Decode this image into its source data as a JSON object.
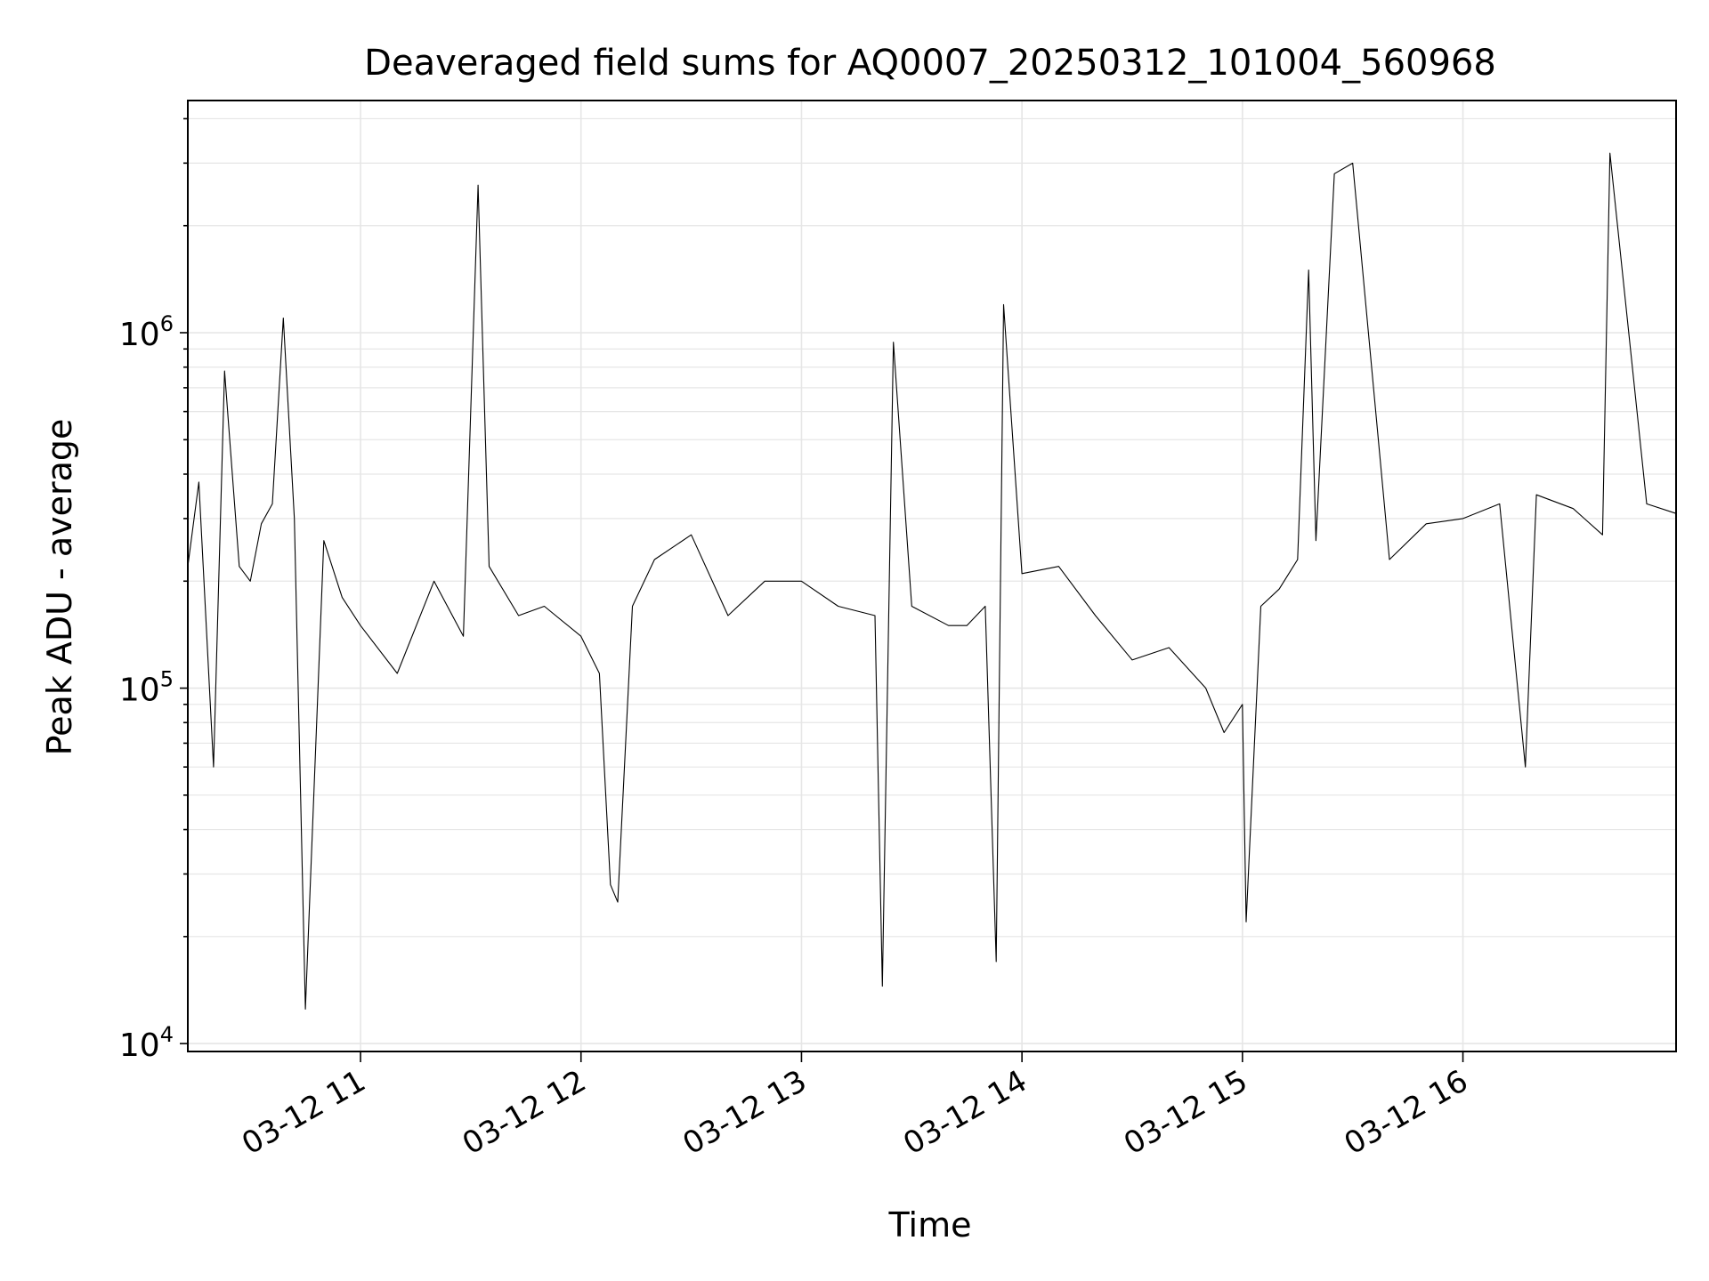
{
  "chart_data": {
    "type": "line",
    "title": "Deaveraged field sums for AQ0007_20250312_101004_560968",
    "xlabel": "Time",
    "ylabel": "Peak ADU - average",
    "xscale": "time",
    "yscale": "log",
    "grid": true,
    "legend": "none",
    "line_color": "#000000",
    "xlim": [
      "2025-03-12 10:13",
      "2025-03-12 16:58"
    ],
    "ylim": [
      9500,
      4500000
    ],
    "x_ticks": [
      "03-12 11",
      "03-12 12",
      "03-12 13",
      "03-12 14",
      "03-12 15",
      "03-12 16"
    ],
    "y_tick_values": [
      10000,
      100000,
      1000000
    ],
    "y_tick_labels": [
      {
        "base": "10",
        "exp": "4"
      },
      {
        "base": "10",
        "exp": "5"
      },
      {
        "base": "10",
        "exp": "6"
      }
    ],
    "series": [
      {
        "x": [
          "2025-03-12 10:13",
          "2025-03-12 10:16",
          "2025-03-12 10:20",
          "2025-03-12 10:23",
          "2025-03-12 10:27",
          "2025-03-12 10:30",
          "2025-03-12 10:33",
          "2025-03-12 10:36",
          "2025-03-12 10:39",
          "2025-03-12 10:42",
          "2025-03-12 10:45",
          "2025-03-12 10:50",
          "2025-03-12 10:55",
          "2025-03-12 11:00",
          "2025-03-12 11:10",
          "2025-03-12 11:20",
          "2025-03-12 11:28",
          "2025-03-12 11:32",
          "2025-03-12 11:35",
          "2025-03-12 11:43",
          "2025-03-12 11:50",
          "2025-03-12 12:00",
          "2025-03-12 12:05",
          "2025-03-12 12:08",
          "2025-03-12 12:10",
          "2025-03-12 12:14",
          "2025-03-12 12:20",
          "2025-03-12 12:30",
          "2025-03-12 12:40",
          "2025-03-12 12:50",
          "2025-03-12 13:00",
          "2025-03-12 13:10",
          "2025-03-12 13:20",
          "2025-03-12 13:22",
          "2025-03-12 13:25",
          "2025-03-12 13:30",
          "2025-03-12 13:40",
          "2025-03-12 13:45",
          "2025-03-12 13:50",
          "2025-03-12 13:53",
          "2025-03-12 13:55",
          "2025-03-12 14:00",
          "2025-03-12 14:10",
          "2025-03-12 14:20",
          "2025-03-12 14:30",
          "2025-03-12 14:40",
          "2025-03-12 14:50",
          "2025-03-12 14:55",
          "2025-03-12 15:00",
          "2025-03-12 15:01",
          "2025-03-12 15:05",
          "2025-03-12 15:10",
          "2025-03-12 15:15",
          "2025-03-12 15:18",
          "2025-03-12 15:20",
          "2025-03-12 15:25",
          "2025-03-12 15:30",
          "2025-03-12 15:40",
          "2025-03-12 15:50",
          "2025-03-12 16:00",
          "2025-03-12 16:10",
          "2025-03-12 16:17",
          "2025-03-12 16:20",
          "2025-03-12 16:30",
          "2025-03-12 16:38",
          "2025-03-12 16:40",
          "2025-03-12 16:50",
          "2025-03-12 16:58"
        ],
        "y": [
          220000,
          380000,
          60000,
          780000,
          220000,
          200000,
          290000,
          330000,
          1100000,
          300000,
          12500,
          260000,
          180000,
          150000,
          110000,
          200000,
          140000,
          2600000,
          220000,
          160000,
          170000,
          140000,
          110000,
          28000,
          25000,
          170000,
          230000,
          270000,
          160000,
          200000,
          200000,
          170000,
          160000,
          14500,
          940000,
          170000,
          150000,
          150000,
          170000,
          17000,
          1200000,
          210000,
          220000,
          160000,
          120000,
          130000,
          100000,
          75000,
          90000,
          22000,
          170000,
          190000,
          230000,
          1500000,
          260000,
          2800000,
          3000000,
          230000,
          290000,
          300000,
          330000,
          60000,
          350000,
          320000,
          270000,
          3200000,
          330000,
          310000
        ]
      }
    ]
  }
}
